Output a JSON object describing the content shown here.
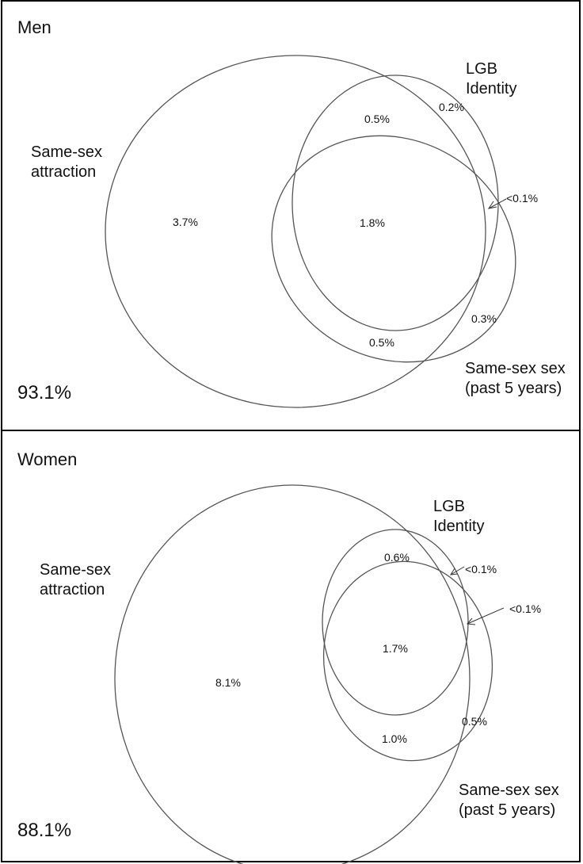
{
  "men": {
    "title": "Men",
    "outside": "93.1%",
    "labels": {
      "attraction_line1": "Same-sex",
      "attraction_line2": "attraction",
      "identity_line1": "LGB",
      "identity_line2": "Identity",
      "sex_line1": "Same-sex sex",
      "sex_line2": "(past 5 years)"
    },
    "regions": {
      "attraction_only": "3.7%",
      "attraction_identity": "0.5%",
      "identity_only": "0.2%",
      "all_three": "1.8%",
      "identity_sex": "<0.1%",
      "sex_only": "0.3%",
      "attraction_sex": "0.5%"
    }
  },
  "women": {
    "title": "Women",
    "outside": "88.1%",
    "labels": {
      "attraction_line1": "Same-sex",
      "attraction_line2": "attraction",
      "identity_line1": "LGB",
      "identity_line2": "Identity",
      "sex_line1": "Same-sex sex",
      "sex_line2": "(past 5 years)"
    },
    "regions": {
      "attraction_only": "8.1%",
      "attraction_identity": "0.6%",
      "identity_only": "<0.1%",
      "identity_sex": "<0.1%",
      "all_three": "1.7%",
      "attraction_sex": "1.0%",
      "sex_only": "0.5%"
    }
  }
}
